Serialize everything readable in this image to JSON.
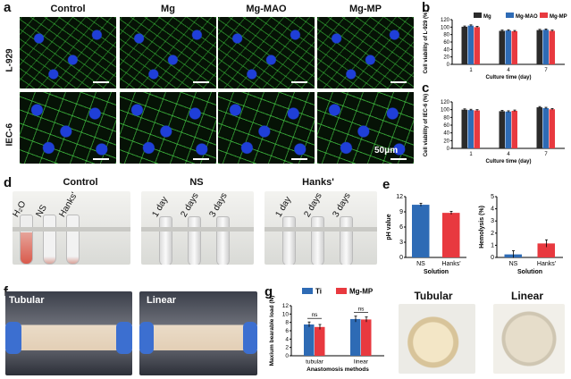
{
  "panel_letters": {
    "a": "a",
    "b": "b",
    "c": "c",
    "d": "d",
    "e": "e",
    "f": "f",
    "g": "g"
  },
  "panel_a": {
    "column_labels": [
      "Control",
      "Mg",
      "Mg-MAO",
      "Mg-MP"
    ],
    "row_labels": [
      "L-929",
      "IEC-6"
    ],
    "scale_bar_label": "50μm"
  },
  "panel_d": {
    "group_titles": [
      "Control",
      "NS",
      "Hanks'"
    ],
    "control_tube_labels": [
      "H₂O",
      "NS",
      "Hanks'"
    ],
    "ns_tube_labels": [
      "1 day",
      "2 days",
      "3 days"
    ],
    "hanks_tube_labels": [
      "1 day",
      "2 days",
      "3 days"
    ]
  },
  "panel_f": {
    "labels": [
      "Tubular",
      "Linear"
    ]
  },
  "panel_g_photos": {
    "labels": [
      "Tubular",
      "Linear"
    ]
  },
  "colors": {
    "Mg": "#2b2b2b",
    "Mg-MAO": "#2e6bb5",
    "Mg-MP": "#e8393f",
    "Ti": "#2e6bb5",
    "ns_blue": "#2e6bb5",
    "ns_red": "#e8393f"
  },
  "chart_data": [
    {
      "id": "b",
      "type": "bar",
      "categories": [
        "1",
        "4",
        "7"
      ],
      "series": [
        {
          "name": "Mg",
          "values": [
            101,
            90,
            92
          ]
        },
        {
          "name": "Mg-MAO",
          "values": [
            104,
            91,
            93
          ]
        },
        {
          "name": "Mg-MP",
          "values": [
            100,
            89,
            90
          ]
        }
      ],
      "errors": [
        [
          2,
          2,
          2
        ],
        [
          2,
          2,
          2
        ],
        [
          2,
          2,
          2
        ]
      ],
      "xlabel": "Culture time (day)",
      "ylabel": "Cell viability of L-929 (%)",
      "ylim": [
        0,
        120
      ],
      "yticks": [
        "0",
        "20",
        "40",
        "60",
        "80",
        "100",
        "120"
      ],
      "legend": "top-right"
    },
    {
      "id": "c",
      "type": "bar",
      "categories": [
        "1",
        "4",
        "7"
      ],
      "series": [
        {
          "name": "Mg",
          "values": [
            100,
            96,
            106
          ]
        },
        {
          "name": "Mg-MAO",
          "values": [
            99,
            95,
            104
          ]
        },
        {
          "name": "Mg-MP",
          "values": [
            98,
            97,
            101
          ]
        }
      ],
      "errors": [
        [
          2,
          2,
          2
        ],
        [
          2,
          2,
          2
        ],
        [
          2,
          2,
          2
        ]
      ],
      "xlabel": "Culture time (day)",
      "ylabel": "Cell viability of IEC-6 (%)",
      "ylim": [
        0,
        120
      ],
      "yticks": [
        "0",
        "20",
        "40",
        "60",
        "80",
        "100",
        "120"
      ]
    },
    {
      "id": "e1",
      "type": "bar",
      "categories": [
        "NS",
        "Hanks'"
      ],
      "values": [
        10.4,
        8.8
      ],
      "errors": [
        0.3,
        0.3
      ],
      "xlabel": "Solution",
      "ylabel": "pH value",
      "ylim": [
        0,
        12
      ],
      "yticks": [
        "0",
        "3",
        "6",
        "9",
        "12"
      ]
    },
    {
      "id": "e2",
      "type": "bar",
      "categories": [
        "NS",
        "Hanks'"
      ],
      "values": [
        0.25,
        1.15
      ],
      "errors": [
        0.3,
        0.3
      ],
      "xlabel": "Solution",
      "ylabel": "Hemolysis (%)",
      "ylim": [
        0,
        5
      ],
      "yticks": [
        "0",
        "1",
        "2",
        "3",
        "4",
        "5"
      ]
    },
    {
      "id": "g",
      "type": "bar",
      "categories": [
        "tubular",
        "linear"
      ],
      "series": [
        {
          "name": "Ti",
          "values": [
            7.5,
            8.8
          ]
        },
        {
          "name": "Mg-MP",
          "values": [
            6.9,
            8.7
          ]
        }
      ],
      "errors": [
        [
          0.6,
          0.7
        ],
        [
          0.6,
          0.6
        ]
      ],
      "xlabel": "Anastomosis methods",
      "ylabel": "Maxium bearable load (N)",
      "ylim": [
        0,
        12
      ],
      "yticks": [
        "0",
        "2",
        "4",
        "6",
        "8",
        "10",
        "12"
      ],
      "annotations": [
        "ns",
        "ns"
      ],
      "legend": "top"
    }
  ]
}
